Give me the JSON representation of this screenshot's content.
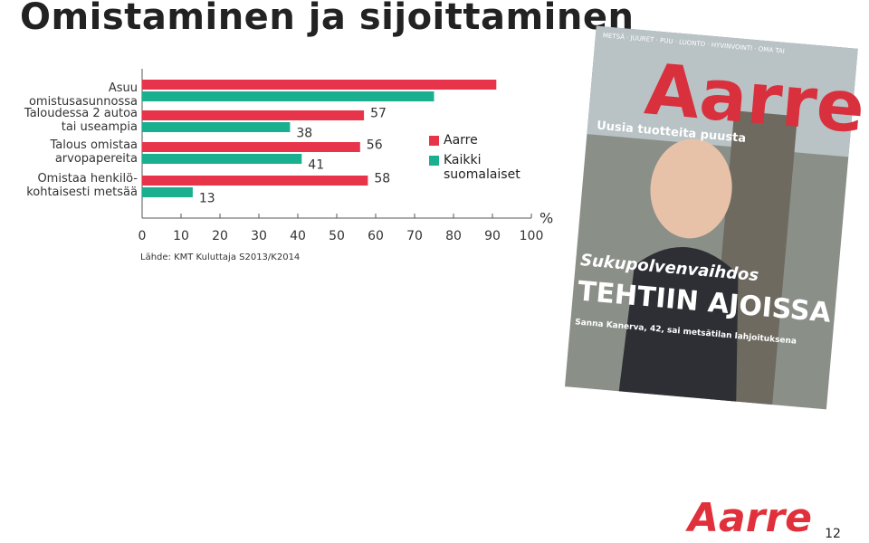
{
  "chart_data": {
    "type": "bar",
    "orientation": "horizontal",
    "title": "Omistaminen ja sijoittaminen",
    "categories": [
      "Asuu omistusasunnossa",
      "Taloudessa 2 autoa\ntai useampia",
      "Talous omistaa\narvopapereita",
      "Omistaa henkilö-\nkohtaisesti metsää"
    ],
    "series": [
      {
        "name": "Aarre",
        "color": "#e8344a",
        "values": [
          91,
          57,
          56,
          58
        ]
      },
      {
        "name": "Kaikki\nsuomalaiset",
        "color": "#1aaf8f",
        "values": [
          75,
          38,
          41,
          13
        ]
      }
    ],
    "xlim": [
      0,
      100
    ],
    "xticks": [
      0,
      10,
      20,
      30,
      40,
      50,
      60,
      70,
      80,
      90,
      100
    ],
    "x_unit": "%",
    "source": "Lähde: KMT Kuluttaja S2013/K2014",
    "legend": "right"
  },
  "cover": {
    "masthead": "Aarre",
    "tagline": "METSÄ · JUURET · PUU · LUONTO · HYVINVOINTI · OMA TAI",
    "headline1": "Uusia tuotteita puusta",
    "headline2": "Sukupolvenvaihdos",
    "headline3": "TEHTIIN AJOISSA",
    "subline": "Sanna Kanerva, 42, sai metsätilan lahjoituksena"
  },
  "footer": {
    "logo": "Aarre",
    "page": "12"
  }
}
